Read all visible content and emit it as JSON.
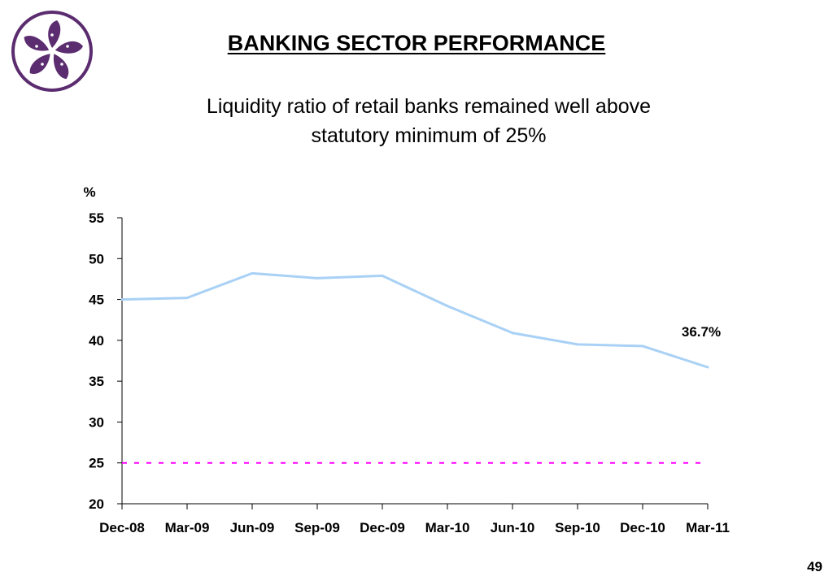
{
  "page": {
    "title": "BANKING SECTOR PERFORMANCE",
    "subtitle_lines": [
      "Liquidity ratio of retail banks remained well above",
      "statutory minimum of 25%"
    ],
    "page_number": "49",
    "logo_icon": "bauhinia-flower-icon",
    "logo_color": "#5b2c6f"
  },
  "chart_data": {
    "type": "line",
    "ylabel": "%",
    "ylim": [
      20,
      55
    ],
    "yticks": [
      "20",
      "25",
      "30",
      "35",
      "40",
      "45",
      "50",
      "55"
    ],
    "categories": [
      "Dec-08",
      "Mar-09",
      "Jun-09",
      "Sep-09",
      "Dec-09",
      "Mar-10",
      "Jun-10",
      "Sep-10",
      "Dec-10",
      "Mar-11"
    ],
    "series": [
      {
        "values": [
          45.0,
          45.2,
          48.2,
          47.6,
          47.9,
          44.2,
          40.9,
          39.5,
          39.3,
          36.7
        ],
        "color": "#a9d1f5"
      }
    ],
    "reference_line": {
      "value": 25,
      "color": "#ff00ff",
      "style": "dashed"
    },
    "annotation": {
      "text": "36.7%",
      "category": "Mar-11"
    },
    "grid": false
  }
}
